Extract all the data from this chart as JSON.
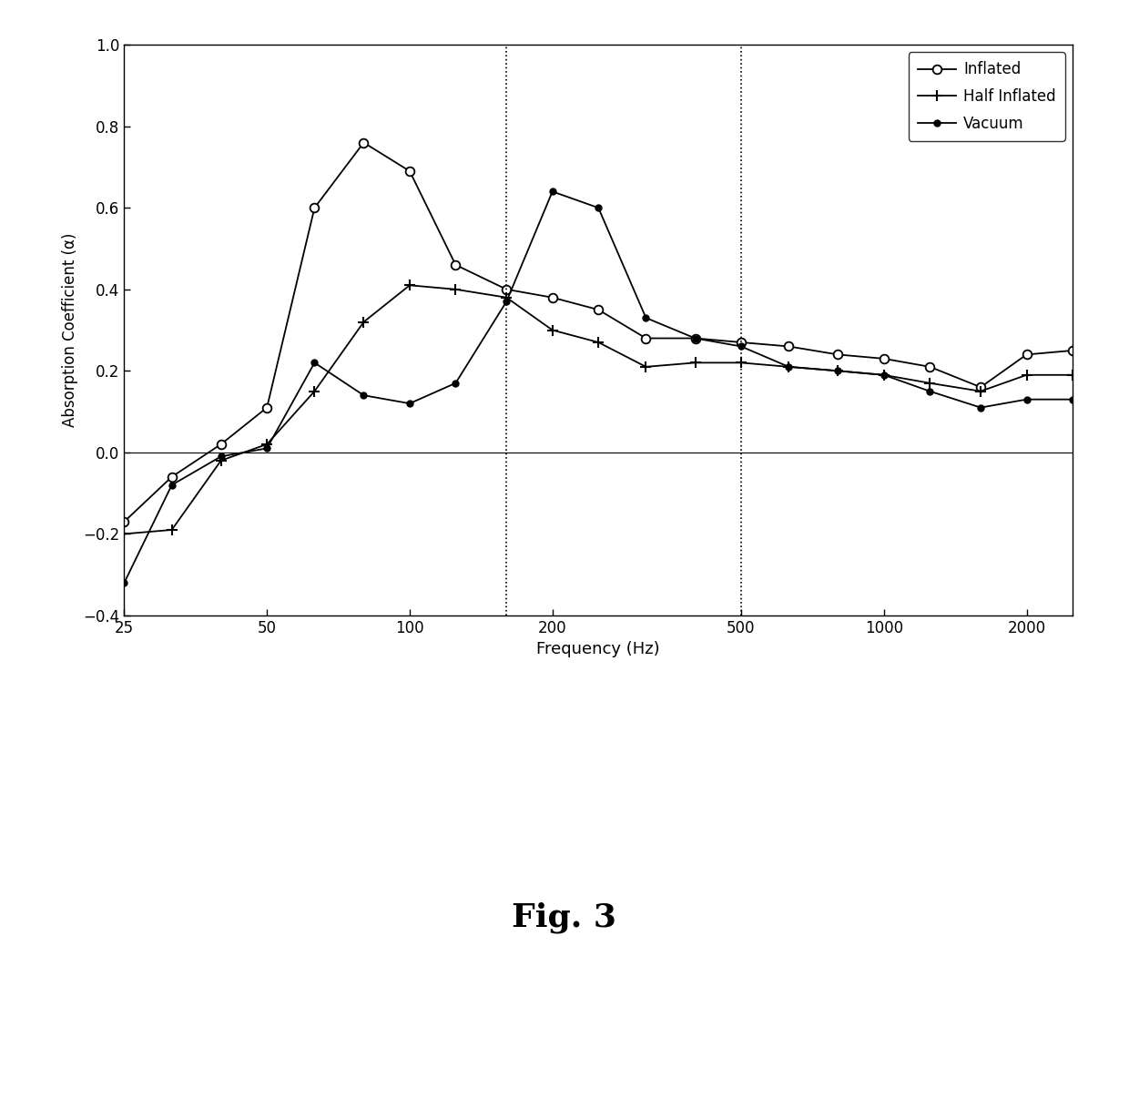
{
  "inflated_x": [
    25,
    31.5,
    40,
    50,
    63,
    80,
    100,
    125,
    160,
    200,
    250,
    315,
    400,
    500,
    630,
    800,
    1000,
    1250,
    1600,
    2000,
    2500
  ],
  "inflated_y": [
    -0.17,
    -0.06,
    0.02,
    0.11,
    0.6,
    0.76,
    0.69,
    0.46,
    0.4,
    0.38,
    0.35,
    0.28,
    0.28,
    0.27,
    0.26,
    0.24,
    0.23,
    0.21,
    0.16,
    0.24,
    0.25
  ],
  "half_inflated_x": [
    25,
    31.5,
    40,
    50,
    63,
    80,
    100,
    125,
    160,
    200,
    250,
    315,
    400,
    500,
    630,
    800,
    1000,
    1250,
    1600,
    2000,
    2500
  ],
  "half_inflated_y": [
    -0.2,
    -0.19,
    -0.02,
    0.02,
    0.15,
    0.32,
    0.41,
    0.4,
    0.38,
    0.3,
    0.27,
    0.21,
    0.22,
    0.22,
    0.21,
    0.2,
    0.19,
    0.17,
    0.15,
    0.19,
    0.19
  ],
  "vacuum_x": [
    25,
    31.5,
    40,
    50,
    63,
    80,
    100,
    125,
    160,
    200,
    250,
    315,
    400,
    500,
    630,
    800,
    1000,
    1250,
    1600,
    2000,
    2500
  ],
  "vacuum_y": [
    -0.32,
    -0.08,
    -0.01,
    0.01,
    0.22,
    0.14,
    0.12,
    0.17,
    0.37,
    0.64,
    0.6,
    0.33,
    0.28,
    0.26,
    0.21,
    0.2,
    0.19,
    0.15,
    0.11,
    0.13,
    0.13
  ],
  "vline1": 160,
  "vline2": 500,
  "ylabel": "Absorption Coefficient (α)",
  "xlabel": "Frequency (Hz)",
  "ylim": [
    -0.4,
    1.0
  ],
  "yticks": [
    -0.4,
    -0.2,
    0,
    0.2,
    0.4,
    0.6,
    0.8,
    1.0
  ],
  "xticks": [
    25,
    50,
    100,
    200,
    500,
    1000,
    2000
  ],
  "xlim": [
    25,
    2500
  ],
  "fig_label": "Fig. 3",
  "legend_labels": [
    "Inflated",
    "Half Inflated",
    "Vacuum"
  ],
  "background_color": "#ffffff"
}
